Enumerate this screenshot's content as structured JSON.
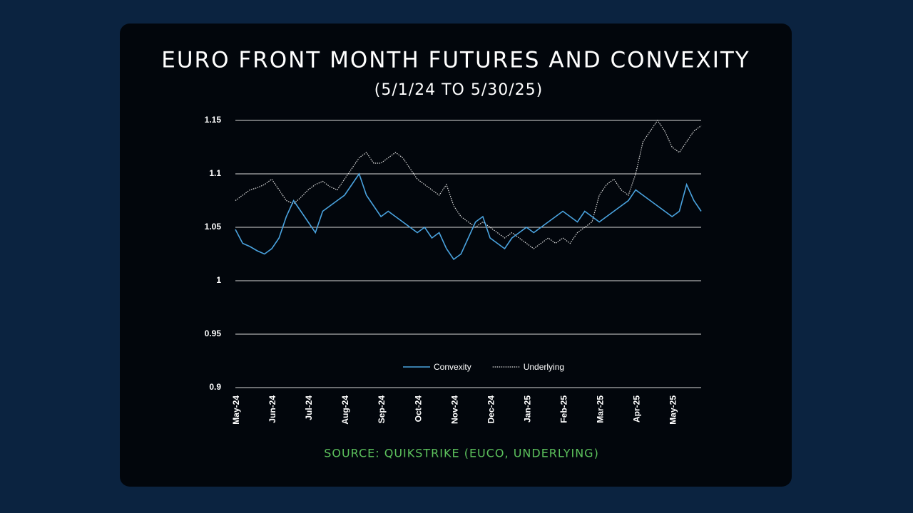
{
  "chart_data": {
    "type": "line",
    "title": "EURO FRONT MONTH FUTURES AND CONVEXITY",
    "subtitle": "(5/1/24 TO 5/30/25)",
    "source": "SOURCE: QUIKSTRIKE (EUCO, UNDERLYING)",
    "categories": [
      "May-24",
      null,
      null,
      null,
      null,
      "Jun-24",
      null,
      null,
      null,
      null,
      "Jul-24",
      null,
      null,
      null,
      null,
      "Aug-24",
      null,
      null,
      null,
      null,
      "Sep-24",
      null,
      null,
      null,
      null,
      "Oct-24",
      null,
      null,
      null,
      null,
      "Nov-24",
      null,
      null,
      null,
      null,
      "Dec-24",
      null,
      null,
      null,
      null,
      "Jan-25",
      null,
      null,
      null,
      null,
      "Feb-25",
      null,
      null,
      null,
      null,
      "Mar-25",
      null,
      null,
      null,
      null,
      "Apr-25",
      null,
      null,
      null,
      null,
      "May-25",
      null,
      null,
      null,
      null
    ],
    "series": [
      {
        "name": "Convexity",
        "color": "#4aa3df",
        "dash": false,
        "values": [
          1.048,
          1.035,
          1.032,
          1.028,
          1.025,
          1.03,
          1.04,
          1.06,
          1.075,
          1.065,
          1.055,
          1.045,
          1.065,
          1.07,
          1.075,
          1.08,
          1.09,
          1.1,
          1.08,
          1.07,
          1.06,
          1.065,
          1.06,
          1.055,
          1.05,
          1.045,
          1.05,
          1.04,
          1.045,
          1.03,
          1.02,
          1.025,
          1.04,
          1.055,
          1.06,
          1.04,
          1.035,
          1.03,
          1.04,
          1.045,
          1.05,
          1.045,
          1.05,
          1.055,
          1.06,
          1.065,
          1.06,
          1.055,
          1.065,
          1.06,
          1.055,
          1.06,
          1.065,
          1.07,
          1.075,
          1.085,
          1.08,
          1.075,
          1.07,
          1.065,
          1.06,
          1.065,
          1.09,
          1.075,
          1.065
        ]
      },
      {
        "name": "Underlying",
        "color": "#e0e0e0",
        "dash": true,
        "values": [
          1.075,
          1.08,
          1.085,
          1.087,
          1.09,
          1.095,
          1.085,
          1.075,
          1.072,
          1.078,
          1.085,
          1.09,
          1.093,
          1.088,
          1.085,
          1.095,
          1.105,
          1.115,
          1.12,
          1.11,
          1.11,
          1.115,
          1.12,
          1.115,
          1.105,
          1.095,
          1.09,
          1.085,
          1.08,
          1.09,
          1.07,
          1.06,
          1.055,
          1.05,
          1.055,
          1.05,
          1.045,
          1.04,
          1.045,
          1.04,
          1.035,
          1.03,
          1.035,
          1.04,
          1.035,
          1.04,
          1.035,
          1.045,
          1.05,
          1.055,
          1.08,
          1.09,
          1.095,
          1.085,
          1.08,
          1.1,
          1.13,
          1.14,
          1.15,
          1.14,
          1.125,
          1.12,
          1.13,
          1.14,
          1.145
        ]
      }
    ],
    "ylim": [
      0.9,
      1.15
    ],
    "yticks": [
      0.9,
      0.95,
      1,
      1.05,
      1.1,
      1.15
    ],
    "grid": true
  }
}
